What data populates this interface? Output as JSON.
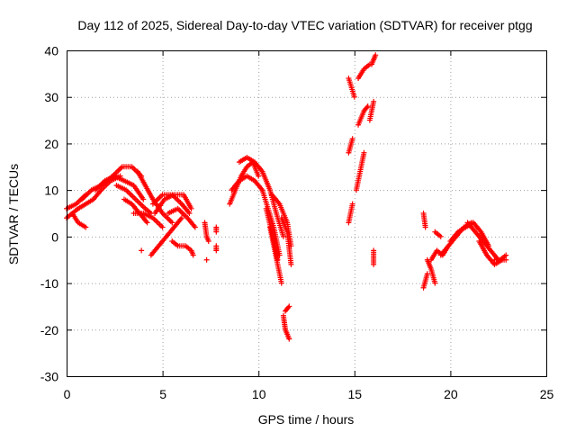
{
  "chart_data": {
    "type": "scatter",
    "title": "Day 112 of 2025, Sidereal Day-to-day VTEC variation (SDTVAR) for receiver ptgg",
    "xlabel": "GPS time / hours",
    "ylabel": "SDTVAR / TECUs",
    "xlim": [
      0,
      25
    ],
    "ylim": [
      -30,
      40
    ],
    "xticks": [
      0,
      5,
      10,
      15,
      20,
      25
    ],
    "yticks": [
      -30,
      -20,
      -10,
      0,
      10,
      20,
      30,
      40
    ],
    "grid": true,
    "marker": "+",
    "color": "#ff0000",
    "tracks": [
      {
        "x": [
          0.0,
          0.5,
          1.0
        ],
        "y": [
          6,
          7,
          9
        ]
      },
      {
        "x": [
          0.0,
          0.3,
          0.6,
          1.0,
          1.4,
          1.8,
          2.3,
          2.8
        ],
        "y": [
          4,
          5,
          6,
          7,
          8,
          10,
          12,
          13
        ]
      },
      {
        "x": [
          0.3,
          0.6,
          1.0
        ],
        "y": [
          5,
          3,
          2
        ]
      },
      {
        "x": [
          0.8,
          1.3,
          1.8,
          2.4,
          2.9,
          3.4,
          3.9
        ],
        "y": [
          8,
          10,
          11,
          13,
          15,
          15,
          13
        ]
      },
      {
        "x": [
          1.5,
          2.0,
          2.5,
          3.0,
          3.5,
          4.0
        ],
        "y": [
          10,
          12,
          13,
          12,
          11,
          8
        ]
      },
      {
        "x": [
          2.6,
          3.1,
          3.6,
          4.1,
          4.4
        ],
        "y": [
          11,
          10,
          8,
          6,
          5
        ]
      },
      {
        "x": [
          3.0,
          3.4,
          3.8,
          4.2
        ],
        "y": [
          8,
          7,
          5,
          3
        ]
      },
      {
        "x": [
          3.5,
          4.0,
          4.5,
          5.0
        ],
        "y": [
          5,
          5,
          4,
          2
        ]
      },
      {
        "x": [
          3.7,
          4.1,
          4.5,
          5.0,
          5.5
        ],
        "y": [
          14,
          11,
          8,
          5,
          3
        ]
      },
      {
        "x": [
          4.4,
          4.8,
          5.2,
          5.6,
          6.0
        ],
        "y": [
          -4,
          -2,
          0,
          2,
          4
        ]
      },
      {
        "x": [
          4.5,
          5.0,
          5.5,
          6.0,
          6.4
        ],
        "y": [
          7,
          9,
          9,
          7,
          5
        ]
      },
      {
        "x": [
          4.6,
          5.1,
          5.6,
          6.1,
          6.5
        ],
        "y": [
          5,
          8,
          9,
          9,
          6
        ]
      },
      {
        "x": [
          5.3,
          5.8,
          6.3,
          6.7
        ],
        "y": [
          5,
          6,
          4,
          2
        ]
      },
      {
        "x": [
          5.5,
          5.8,
          6.1
        ],
        "y": [
          -1,
          -2,
          -2
        ]
      },
      {
        "x": [
          6.2,
          6.5,
          6.6
        ],
        "y": [
          -2,
          -3,
          -4
        ]
      },
      {
        "x": [
          3.9
        ],
        "y": [
          -3
        ]
      },
      {
        "x": [
          7.2,
          7.3,
          7.4
        ],
        "y": [
          3,
          0,
          -1
        ]
      },
      {
        "x": [
          7.3
        ],
        "y": [
          -5
        ]
      },
      {
        "x": [
          7.8,
          7.8
        ],
        "y": [
          2,
          1
        ]
      },
      {
        "x": [
          7.8,
          7.8
        ],
        "y": [
          -2,
          -3
        ]
      },
      {
        "x": [
          8.5,
          8.8,
          9.1,
          9.4,
          9.7,
          10.0
        ],
        "y": [
          7,
          10,
          13,
          15,
          16,
          13
        ]
      },
      {
        "x": [
          8.6,
          9.0,
          9.4,
          9.8,
          10.2
        ],
        "y": [
          10,
          12,
          13,
          12,
          10
        ]
      },
      {
        "x": [
          9.0,
          9.4,
          9.8,
          10.2,
          10.6,
          11.0,
          11.3
        ],
        "y": [
          16,
          17,
          16,
          14,
          10,
          4,
          0
        ]
      },
      {
        "x": [
          10.2,
          10.5,
          10.8,
          11.1
        ],
        "y": [
          10,
          6,
          2,
          -4
        ]
      },
      {
        "x": [
          10.4,
          10.7,
          11.0
        ],
        "y": [
          6,
          1,
          -5
        ]
      },
      {
        "x": [
          10.6,
          10.8,
          11.0,
          11.2
        ],
        "y": [
          2,
          -2,
          -6,
          -10
        ]
      },
      {
        "x": [
          10.7,
          11.1,
          11.5,
          11.7
        ],
        "y": [
          9,
          7,
          3,
          -2
        ]
      },
      {
        "x": [
          11.2,
          11.5,
          11.7
        ],
        "y": [
          4,
          1,
          -6
        ]
      },
      {
        "x": [
          11.4,
          11.6
        ],
        "y": [
          -16,
          -15
        ]
      },
      {
        "x": [
          11.3,
          11.4,
          11.6
        ],
        "y": [
          -17,
          -20,
          -22
        ]
      },
      {
        "x": [
          14.7,
          14.9
        ],
        "y": [
          3,
          7
        ]
      },
      {
        "x": [
          14.7,
          14.9
        ],
        "y": [
          18,
          21
        ]
      },
      {
        "x": [
          14.7,
          15.0
        ],
        "y": [
          34,
          30
        ]
      },
      {
        "x": [
          15.1,
          15.3,
          15.5
        ],
        "y": [
          10,
          14,
          18
        ]
      },
      {
        "x": [
          15.2,
          15.5,
          15.7
        ],
        "y": [
          24,
          27,
          28
        ]
      },
      {
        "x": [
          15.2,
          15.5,
          15.8
        ],
        "y": [
          34,
          36,
          37
        ]
      },
      {
        "x": [
          15.8,
          16.0
        ],
        "y": [
          25,
          29
        ]
      },
      {
        "x": [
          15.9,
          16.1
        ],
        "y": [
          37,
          39
        ]
      },
      {
        "x": [
          16.0,
          16.0
        ],
        "y": [
          -3,
          -6
        ]
      },
      {
        "x": [
          18.6,
          18.7
        ],
        "y": [
          5,
          2
        ]
      },
      {
        "x": [
          18.6,
          18.8
        ],
        "y": [
          -11,
          -8
        ]
      },
      {
        "x": [
          18.8,
          19.0,
          19.2
        ],
        "y": [
          -5,
          -7,
          -10
        ]
      },
      {
        "x": [
          19.0,
          19.3,
          19.6,
          19.9
        ],
        "y": [
          -5,
          -3,
          -4,
          -2
        ]
      },
      {
        "x": [
          19.2,
          19.5
        ],
        "y": [
          1,
          0
        ]
      },
      {
        "x": [
          19.5,
          19.9,
          20.3,
          20.7,
          21.1
        ],
        "y": [
          -4,
          -2,
          0,
          2,
          3
        ]
      },
      {
        "x": [
          20.0,
          20.4,
          20.8,
          21.2,
          21.6,
          22.0
        ],
        "y": [
          -1,
          1,
          2,
          3,
          1,
          -2
        ]
      },
      {
        "x": [
          20.9,
          21.3,
          21.7,
          22.1,
          22.5,
          22.9
        ],
        "y": [
          3,
          1,
          -1,
          -3,
          -5,
          -5
        ]
      },
      {
        "x": [
          21.5,
          21.9,
          22.3,
          22.7
        ],
        "y": [
          -1,
          -4,
          -6,
          -5
        ]
      },
      {
        "x": [
          22.3,
          22.6,
          22.9
        ],
        "y": [
          -5,
          -5,
          -4
        ]
      }
    ]
  }
}
